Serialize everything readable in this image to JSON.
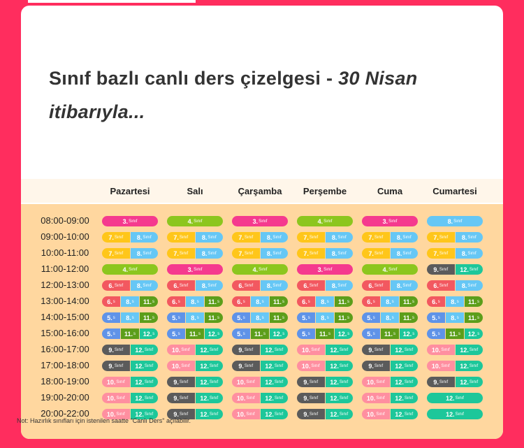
{
  "title_main": "Sınıf bazlı canlı ders çizelgesi -",
  "title_italic": "30 Nisan itibarıyla...",
  "days": [
    "Pazartesi",
    "Salı",
    "Çarşamba",
    "Perşembe",
    "Cuma",
    "Cumartesi"
  ],
  "note": "Not: Hazırlık sınıfları için istenilen saatte \"Canlı Ders\" açılabilir.",
  "colors": {
    "3": "#f53a8e",
    "4": "#8cc61e",
    "5": "#5f93e8",
    "6": "#f25860",
    "7": "#ffc61a",
    "8": "#66c7f5",
    "9": "#5b5b5b",
    "10": "#ff8fa0",
    "11": "#5c9e1a",
    "12": "#1dc79a"
  },
  "rows": [
    {
      "time": "08:00-09:00",
      "cells": [
        [
          [
            "3",
            "Sınıf"
          ]
        ],
        [
          [
            "4",
            "Sınıf"
          ]
        ],
        [
          [
            "3",
            "Sınıf"
          ]
        ],
        [
          [
            "4",
            "Sınıf"
          ]
        ],
        [
          [
            "3",
            "Sınıf"
          ]
        ],
        [
          [
            "8",
            "Sınıf"
          ]
        ]
      ]
    },
    {
      "time": "09:00-10:00",
      "cells": [
        [
          [
            "7",
            "Sınıf"
          ],
          [
            "8",
            "Sınıf"
          ]
        ],
        [
          [
            "7",
            "Sınıf"
          ],
          [
            "8",
            "Sınıf"
          ]
        ],
        [
          [
            "7",
            "Sınıf"
          ],
          [
            "8",
            "Sınıf"
          ]
        ],
        [
          [
            "7",
            "Sınıf"
          ],
          [
            "8",
            "Sınıf"
          ]
        ],
        [
          [
            "7",
            "Sınıf"
          ],
          [
            "8",
            "Sınıf"
          ]
        ],
        [
          [
            "7",
            "Sınıf"
          ],
          [
            "8",
            "Sınıf"
          ]
        ]
      ]
    },
    {
      "time": "10:00-11:00",
      "cells": [
        [
          [
            "7",
            "Sınıf"
          ],
          [
            "8",
            "Sınıf"
          ]
        ],
        [
          [
            "7",
            "Sınıf"
          ],
          [
            "8",
            "Sınıf"
          ]
        ],
        [
          [
            "7",
            "Sınıf"
          ],
          [
            "8",
            "Sınıf"
          ]
        ],
        [
          [
            "7",
            "Sınıf"
          ],
          [
            "8",
            "Sınıf"
          ]
        ],
        [
          [
            "7",
            "Sınıf"
          ],
          [
            "8",
            "Sınıf"
          ]
        ],
        [
          [
            "7",
            "Sınıf"
          ],
          [
            "8",
            "Sınıf"
          ]
        ]
      ]
    },
    {
      "time": "11:00-12:00",
      "cells": [
        [
          [
            "4",
            "Sınıf"
          ]
        ],
        [
          [
            "3",
            "Sınıf"
          ]
        ],
        [
          [
            "4",
            "Sınıf"
          ]
        ],
        [
          [
            "3",
            "Sınıf"
          ]
        ],
        [
          [
            "4",
            "Sınıf"
          ]
        ],
        [
          [
            "9",
            "Sınıf"
          ],
          [
            "12",
            "Sınıf"
          ]
        ]
      ]
    },
    {
      "time": "12:00-13:00",
      "cells": [
        [
          [
            "6",
            "Sınıf"
          ],
          [
            "8",
            "Sınıf"
          ]
        ],
        [
          [
            "6",
            "Sınıf"
          ],
          [
            "8",
            "Sınıf"
          ]
        ],
        [
          [
            "6",
            "Sınıf"
          ],
          [
            "8",
            "Sınıf"
          ]
        ],
        [
          [
            "6",
            "Sınıf"
          ],
          [
            "8",
            "Sınıf"
          ]
        ],
        [
          [
            "6",
            "Sınıf"
          ],
          [
            "8",
            "Sınıf"
          ]
        ],
        [
          [
            "6",
            "Sınıf"
          ],
          [
            "8",
            "Sınıf"
          ]
        ]
      ]
    },
    {
      "time": "13:00-14:00",
      "cells": [
        [
          [
            "6",
            "s"
          ],
          [
            "8",
            "s"
          ],
          [
            "11",
            "s"
          ]
        ],
        [
          [
            "6",
            "s"
          ],
          [
            "8",
            "s"
          ],
          [
            "11",
            "s"
          ]
        ],
        [
          [
            "6",
            "s"
          ],
          [
            "8",
            "s"
          ],
          [
            "11",
            "s"
          ]
        ],
        [
          [
            "6",
            "s"
          ],
          [
            "8",
            "s"
          ],
          [
            "11",
            "s"
          ]
        ],
        [
          [
            "6",
            "s"
          ],
          [
            "8",
            "s"
          ],
          [
            "11",
            "s"
          ]
        ],
        [
          [
            "6",
            "s"
          ],
          [
            "8",
            "s"
          ],
          [
            "11",
            "s"
          ]
        ]
      ]
    },
    {
      "time": "14:00-15:00",
      "cells": [
        [
          [
            "5",
            "s"
          ],
          [
            "8",
            "s"
          ],
          [
            "11",
            "s"
          ]
        ],
        [
          [
            "5",
            "s"
          ],
          [
            "8",
            "s"
          ],
          [
            "11",
            "s"
          ]
        ],
        [
          [
            "5",
            "s"
          ],
          [
            "8",
            "s"
          ],
          [
            "11",
            "s"
          ]
        ],
        [
          [
            "5",
            "s"
          ],
          [
            "8",
            "s"
          ],
          [
            "11",
            "s"
          ]
        ],
        [
          [
            "5",
            "s"
          ],
          [
            "8",
            "s"
          ],
          [
            "11",
            "s"
          ]
        ],
        [
          [
            "5",
            "s"
          ],
          [
            "8",
            "s"
          ],
          [
            "11",
            "s"
          ]
        ]
      ]
    },
    {
      "time": "15:00-16:00",
      "cells": [
        [
          [
            "5",
            "s"
          ],
          [
            "11",
            "s"
          ],
          [
            "12",
            "s"
          ]
        ],
        [
          [
            "5",
            "s"
          ],
          [
            "11",
            "s"
          ],
          [
            "12",
            "s"
          ]
        ],
        [
          [
            "5",
            "s"
          ],
          [
            "11",
            "s"
          ],
          [
            "12",
            "s"
          ]
        ],
        [
          [
            "5",
            "s"
          ],
          [
            "11",
            "s"
          ],
          [
            "12",
            "s"
          ]
        ],
        [
          [
            "5",
            "s"
          ],
          [
            "11",
            "s"
          ],
          [
            "12",
            "s"
          ]
        ],
        [
          [
            "5",
            "s"
          ],
          [
            "11",
            "s"
          ],
          [
            "12",
            "s"
          ]
        ]
      ]
    },
    {
      "time": "16:00-17:00",
      "cells": [
        [
          [
            "9",
            "Sınıf"
          ],
          [
            "12",
            "Sınıf"
          ]
        ],
        [
          [
            "10",
            "Sınıf"
          ],
          [
            "12",
            "Sınıf"
          ]
        ],
        [
          [
            "9",
            "Sınıf"
          ],
          [
            "12",
            "Sınıf"
          ]
        ],
        [
          [
            "10",
            "Sınıf"
          ],
          [
            "12",
            "Sınıf"
          ]
        ],
        [
          [
            "9",
            "Sınıf"
          ],
          [
            "12",
            "Sınıf"
          ]
        ],
        [
          [
            "10",
            "Sınıf"
          ],
          [
            "12",
            "Sınıf"
          ]
        ]
      ]
    },
    {
      "time": "17:00-18:00",
      "cells": [
        [
          [
            "9",
            "Sınıf"
          ],
          [
            "12",
            "Sınıf"
          ]
        ],
        [
          [
            "10",
            "Sınıf"
          ],
          [
            "12",
            "Sınıf"
          ]
        ],
        [
          [
            "9",
            "Sınıf"
          ],
          [
            "12",
            "Sınıf"
          ]
        ],
        [
          [
            "10",
            "Sınıf"
          ],
          [
            "12",
            "Sınıf"
          ]
        ],
        [
          [
            "9",
            "Sınıf"
          ],
          [
            "12",
            "Sınıf"
          ]
        ],
        [
          [
            "10",
            "Sınıf"
          ],
          [
            "12",
            "Sınıf"
          ]
        ]
      ]
    },
    {
      "time": "18:00-19:00",
      "cells": [
        [
          [
            "10",
            "Sınıf"
          ],
          [
            "12",
            "Sınıf"
          ]
        ],
        [
          [
            "9",
            "Sınıf"
          ],
          [
            "12",
            "Sınıf"
          ]
        ],
        [
          [
            "10",
            "Sınıf"
          ],
          [
            "12",
            "Sınıf"
          ]
        ],
        [
          [
            "9",
            "Sınıf"
          ],
          [
            "12",
            "Sınıf"
          ]
        ],
        [
          [
            "10",
            "Sınıf"
          ],
          [
            "12",
            "Sınıf"
          ]
        ],
        [
          [
            "9",
            "Sınıf"
          ],
          [
            "12",
            "Sınıf"
          ]
        ]
      ]
    },
    {
      "time": "19:00-20:00",
      "cells": [
        [
          [
            "10",
            "Sınıf"
          ],
          [
            "12",
            "Sınıf"
          ]
        ],
        [
          [
            "9",
            "Sınıf"
          ],
          [
            "12",
            "Sınıf"
          ]
        ],
        [
          [
            "10",
            "Sınıf"
          ],
          [
            "12",
            "Sınıf"
          ]
        ],
        [
          [
            "9",
            "Sınıf"
          ],
          [
            "12",
            "Sınıf"
          ]
        ],
        [
          [
            "10",
            "Sınıf"
          ],
          [
            "12",
            "Sınıf"
          ]
        ],
        [
          [
            "12",
            "Sınıf"
          ]
        ]
      ]
    },
    {
      "time": "20:00-22:00",
      "cells": [
        [
          [
            "10",
            "Sınıf"
          ],
          [
            "12",
            "Sınıf"
          ]
        ],
        [
          [
            "9",
            "Sınıf"
          ],
          [
            "12",
            "Sınıf"
          ]
        ],
        [
          [
            "10",
            "Sınıf"
          ],
          [
            "12",
            "Sınıf"
          ]
        ],
        [
          [
            "9",
            "Sınıf"
          ],
          [
            "12",
            "Sınıf"
          ]
        ],
        [
          [
            "10",
            "Sınıf"
          ],
          [
            "12",
            "Sınıf"
          ]
        ],
        [
          [
            "12",
            "Sınıf"
          ]
        ]
      ]
    }
  ]
}
